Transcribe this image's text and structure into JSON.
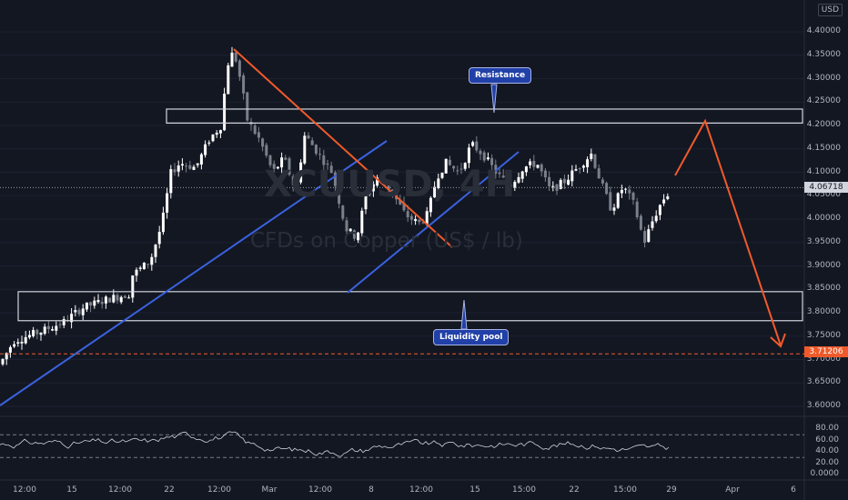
{
  "header": {
    "currency": "USD"
  },
  "watermark": {
    "symbol": "XCUUSD, 4H",
    "description": "CFDs on Copper (US$ / lb)"
  },
  "price_axis": {
    "ticks": [
      "4.40000",
      "4.35000",
      "4.30000",
      "4.25000",
      "4.20000",
      "4.15000",
      "4.10000",
      "4.05000",
      "4.00000",
      "3.95000",
      "3.90000",
      "3.85000",
      "3.80000",
      "3.75000",
      "3.70000",
      "3.65000",
      "3.60000"
    ],
    "current_price": "4.06718",
    "liquidity_price": "3.71206"
  },
  "rsi_axis": {
    "ticks": [
      "80.00",
      "60.00",
      "40.00",
      "20.00",
      "0.0000"
    ]
  },
  "time_axis": {
    "labels": [
      "12:00",
      "15",
      "12:00",
      "22",
      "12:00",
      "Mar",
      "12:00",
      "8",
      "12:00",
      "15",
      "15:00",
      "22",
      "15:00",
      "29",
      "Apr",
      "6"
    ]
  },
  "annotations": {
    "resistance": "Resistance",
    "liquidity": "Liquidity pool"
  },
  "colors": {
    "background": "#131722",
    "bull": "#ffffff",
    "bear": "#7b7f8a",
    "trend_blue": "#3a62e0",
    "trend_orange": "#f05a2b",
    "rsi": "#cfd2d9"
  },
  "chart_data": {
    "type": "candlestick",
    "symbol": "XCUUSD",
    "timeframe": "4H",
    "y_range": [
      3.58,
      4.43
    ],
    "current": 4.06718,
    "zones": [
      {
        "label": "Resistance",
        "low": 4.205,
        "high": 4.235
      },
      {
        "label": "Liquidity pool",
        "low": 3.783,
        "high": 3.845
      }
    ],
    "target_line": 3.71206,
    "projection": [
      4.09,
      4.205,
      3.71
    ],
    "rsi_levels": [
      70,
      30
    ]
  }
}
